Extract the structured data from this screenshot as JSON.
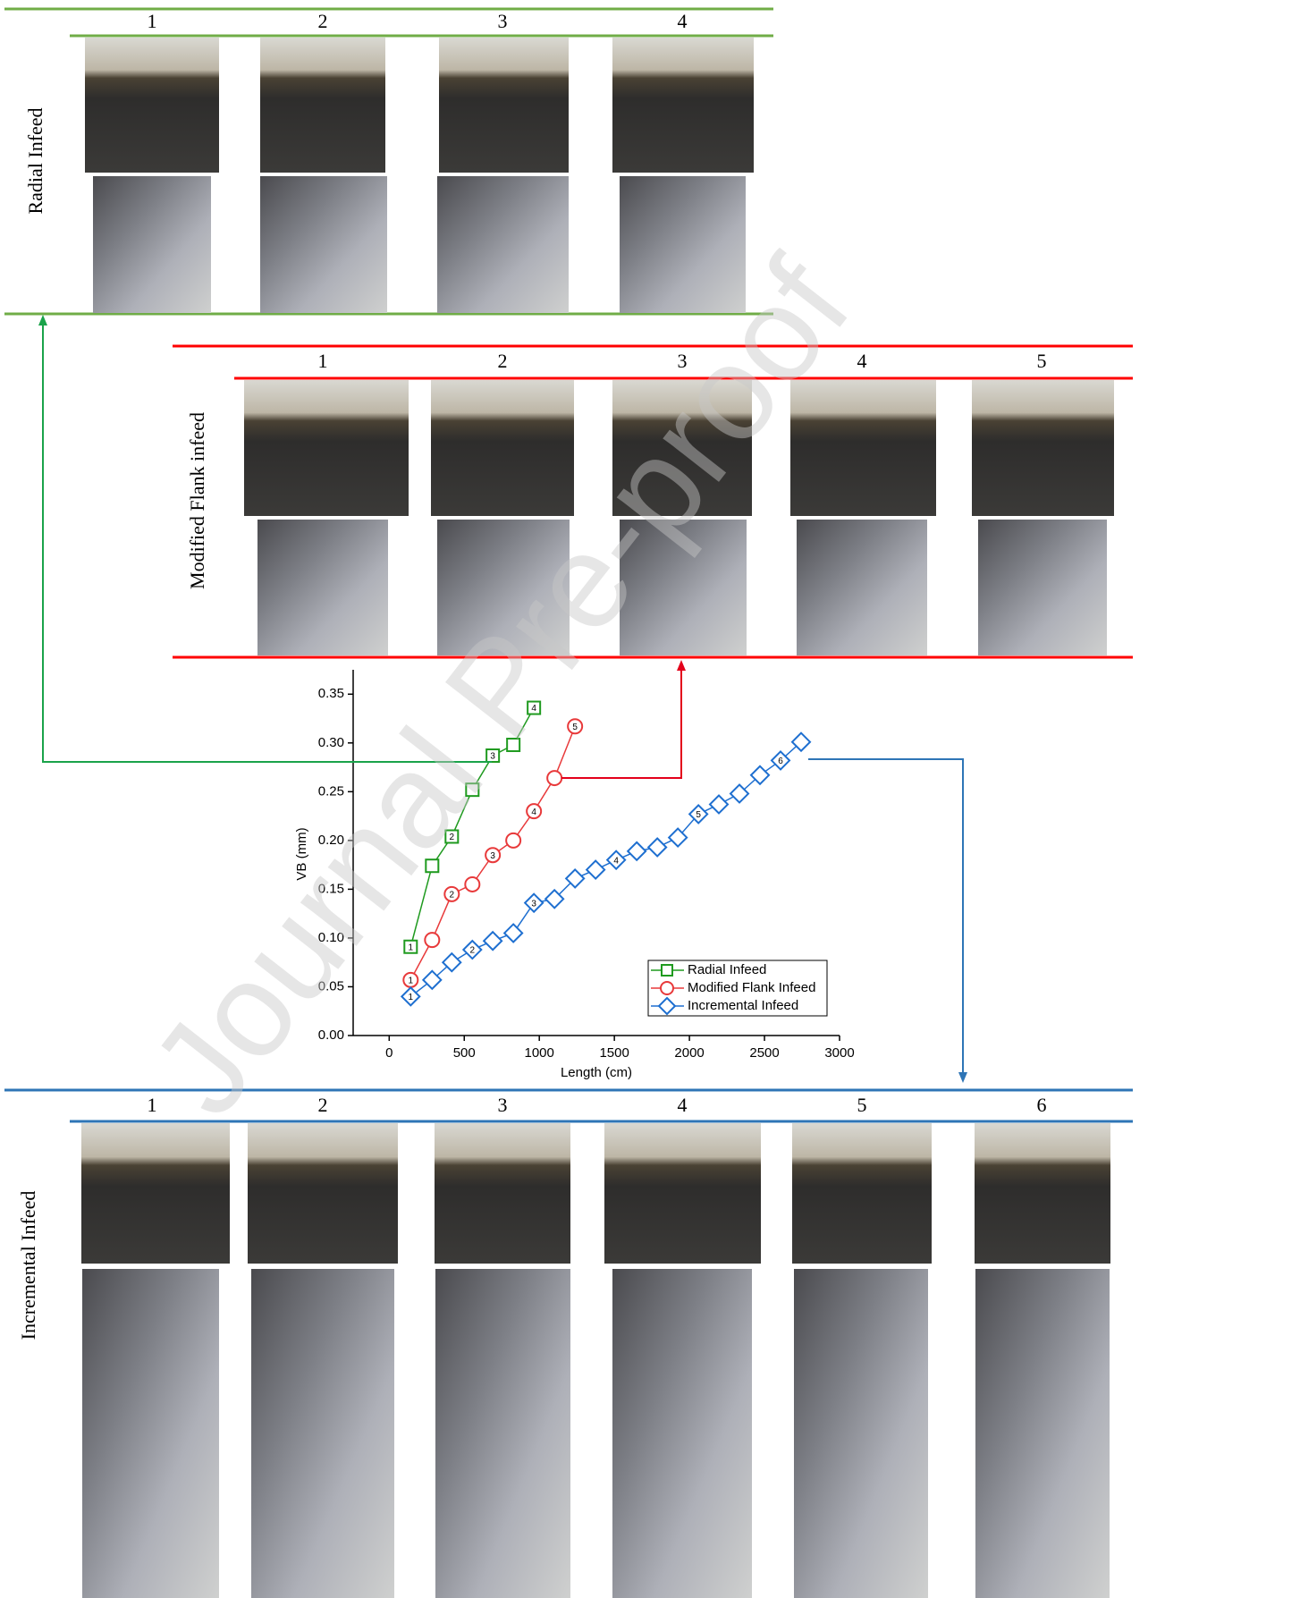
{
  "watermark": "Journal Pre-proof",
  "panels": [
    {
      "label": "Radial Infeed",
      "numbers": [
        1,
        2,
        3,
        4
      ],
      "color": "#70ad47"
    },
    {
      "label": "Modified Flank infeed",
      "numbers": [
        1,
        2,
        3,
        4,
        5
      ],
      "color": "#ff0000"
    },
    {
      "label": "Incremental Infeed",
      "numbers": [
        1,
        2,
        3,
        4,
        5,
        6
      ],
      "color": "#2e75b6"
    }
  ],
  "chart_data": {
    "type": "line",
    "x_label": "Length (cm)",
    "y_label": "VB (mm)",
    "xlim": [
      -240,
      3000
    ],
    "ylim": [
      0,
      0.375
    ],
    "xticks": [
      0,
      500,
      1000,
      1500,
      2000,
      2500,
      3000
    ],
    "yticks": [
      {
        "value": 0,
        "label": "0.00"
      },
      {
        "value": 0.05,
        "label": "0.05"
      },
      {
        "value": 0.1,
        "label": "0.10"
      },
      {
        "value": 0.15,
        "label": "0.15"
      },
      {
        "value": 0.2,
        "label": "0.20"
      },
      {
        "value": 0.25,
        "label": "0.25"
      },
      {
        "value": 0.3,
        "label": "0.30"
      },
      {
        "value": 0.35,
        "label": "0.35"
      }
    ],
    "legend": "lower right",
    "series": [
      {
        "name": "Radial Infeed",
        "color": "#1f9a1f",
        "marker": "square",
        "x": [
          143,
          286,
          417,
          554,
          690,
          827,
          964
        ],
        "values": [
          0.091,
          0.174,
          0.204,
          0.252,
          0.287,
          0.298,
          0.336
        ],
        "marker_labels": [
          "1",
          null,
          "2",
          null,
          "3",
          null,
          "4"
        ]
      },
      {
        "name": "Modified Flank Infeed",
        "color": "#e8393a",
        "marker": "circle",
        "x": [
          143,
          286,
          417,
          554,
          690,
          827,
          964,
          1101,
          1238
        ],
        "values": [
          0.057,
          0.098,
          0.145,
          0.155,
          0.185,
          0.2,
          0.23,
          0.264,
          0.317
        ],
        "marker_labels": [
          "1",
          null,
          "2",
          null,
          "3",
          null,
          "4",
          null,
          "5"
        ]
      },
      {
        "name": "Incremental Infeed",
        "color": "#1e6fd0",
        "marker": "diamond",
        "x": [
          143,
          286,
          417,
          554,
          690,
          827,
          964,
          1101,
          1238,
          1375,
          1512,
          1649,
          1786,
          1923,
          2060,
          2196,
          2333,
          2470,
          2607,
          2744
        ],
        "values": [
          0.04,
          0.057,
          0.075,
          0.088,
          0.097,
          0.105,
          0.136,
          0.14,
          0.161,
          0.17,
          0.18,
          0.189,
          0.193,
          0.203,
          0.227,
          0.237,
          0.248,
          0.267,
          0.282,
          0.301
        ],
        "marker_labels": [
          "1",
          null,
          null,
          "2",
          null,
          null,
          "3",
          null,
          null,
          null,
          "4",
          null,
          null,
          null,
          "5",
          null,
          null,
          null,
          "6",
          null
        ]
      }
    ]
  }
}
